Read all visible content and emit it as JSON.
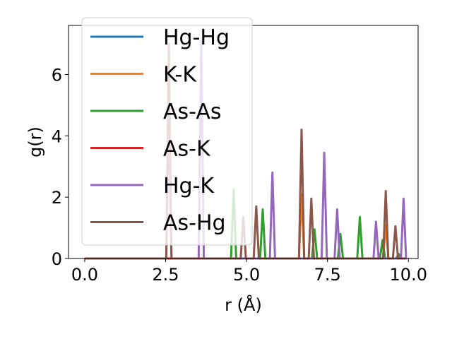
{
  "chart_data": {
    "type": "line",
    "xlabel": "r (Å)",
    "ylabel": "g(r)",
    "xlim": [
      -0.5,
      10.3
    ],
    "ylim": [
      0,
      7.6
    ],
    "xticks": [
      0.0,
      2.5,
      5.0,
      7.5,
      10.0
    ],
    "xtick_labels": [
      "0.0",
      "2.5",
      "5.0",
      "7.5",
      "10.0"
    ],
    "yticks": [
      0,
      2,
      4,
      6
    ],
    "ytick_labels": [
      "0",
      "2",
      "4",
      "6"
    ],
    "grid": false,
    "legend_position": "upper-left",
    "peak_half_width": 0.08,
    "series": [
      {
        "name": "Hg-Hg",
        "color": "#1f77b4",
        "x_start": 0,
        "x_end": 9.9,
        "peaks": []
      },
      {
        "name": "K-K",
        "color": "#ff7f0e",
        "x_start": 0,
        "x_end": 9.9,
        "peaks": [
          [
            6.7,
            2.1
          ],
          [
            9.3,
            1.1
          ]
        ]
      },
      {
        "name": "As-As",
        "color": "#2ca02c",
        "x_start": 0,
        "x_end": 9.9,
        "peaks": [
          [
            4.6,
            2.25
          ],
          [
            5.5,
            1.6
          ],
          [
            7.1,
            0.95
          ],
          [
            7.9,
            0.8
          ],
          [
            8.5,
            1.35
          ],
          [
            9.2,
            0.6
          ],
          [
            9.7,
            0.15
          ]
        ]
      },
      {
        "name": "As-K",
        "color": "#d62728",
        "x_start": 0,
        "x_end": 9.9,
        "peaks": []
      },
      {
        "name": "Hg-K",
        "color": "#9467bd",
        "x_start": 0,
        "x_end": 9.9,
        "peaks": [
          [
            2.6,
            4.8
          ],
          [
            3.6,
            7.1
          ],
          [
            5.8,
            2.8
          ],
          [
            7.4,
            3.45
          ],
          [
            7.8,
            1.6
          ],
          [
            9.0,
            1.2
          ],
          [
            9.85,
            1.95
          ]
        ]
      },
      {
        "name": "As-Hg",
        "color": "#8c564b",
        "x_start": 0,
        "x_end": 9.9,
        "peaks": [
          [
            2.6,
            7.0
          ],
          [
            4.9,
            1.35
          ],
          [
            5.3,
            1.7
          ],
          [
            6.7,
            4.2
          ],
          [
            7.0,
            1.95
          ],
          [
            9.3,
            2.2
          ],
          [
            9.6,
            1.05
          ]
        ]
      }
    ]
  }
}
